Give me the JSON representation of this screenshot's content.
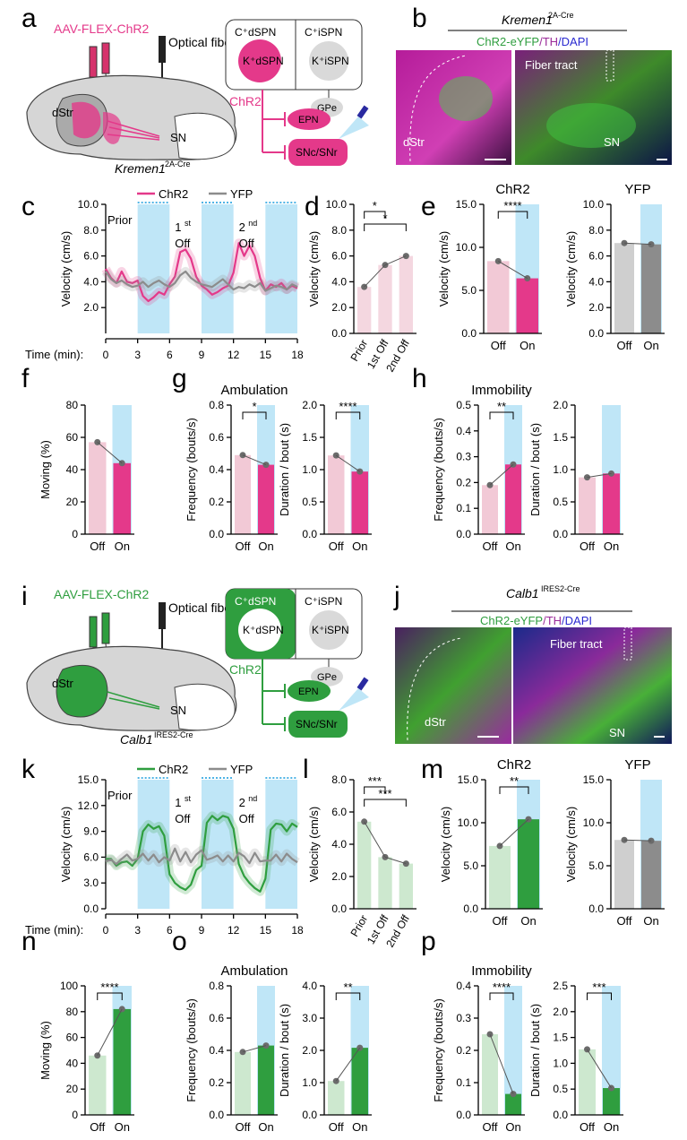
{
  "colors": {
    "chr2_magenta": "#e4398a",
    "chr2_magenta_light": "#f2c9d6",
    "chr2_green": "#2f9e3f",
    "chr2_green_light": "#cde8cf",
    "yfp_gray": "#8c8c8c",
    "yfp_gray_light": "#cfcfcf",
    "light_blue": "#bfe6f7",
    "dot": "#6b6b6b"
  },
  "top": {
    "a": {
      "letter": "a",
      "virus": "AAV-FLEX-ChR2",
      "fiber": "Optical fiber",
      "dstr": "dStr",
      "sn": "SN",
      "mouse": "Kremen1",
      "mouse_sup": "2A-Cre",
      "dspn_c": "C⁺dSPN",
      "ispn_c": "C⁺iSPN",
      "dspn_k": "K⁺dSPN",
      "ispn_k": "K⁺iSPN",
      "chr2": "ChR2",
      "gpe": "GPe",
      "epn": "EPN",
      "sncsnr": "SNc/SNr"
    },
    "b": {
      "letter": "b",
      "mouse": "Kremen1",
      "mouse_sup": "2A-Cre",
      "stain1": "ChR2-eYFP",
      "stain2": "TH",
      "stain3": "DAPI",
      "dstr": "dStr",
      "fiber_tract": "Fiber tract",
      "sn": "SN"
    }
  },
  "bottom": {
    "i": {
      "letter": "i",
      "virus": "AAV-FLEX-ChR2",
      "fiber": "Optical fiber",
      "dstr": "dStr",
      "sn": "SN",
      "mouse": "Calb1",
      "mouse_sup": "IRES2-Cre",
      "dspn_c": "C⁺dSPN",
      "ispn_c": "C⁺iSPN",
      "dspn_k": "K⁺dSPN",
      "ispn_k": "K⁺iSPN",
      "chr2": "ChR2",
      "gpe": "GPe",
      "epn": "EPN",
      "sncsnr": "SNc/SNr"
    },
    "j": {
      "letter": "j",
      "mouse": "Calb1",
      "mouse_sup": "IRES2-Cre",
      "stain1": "ChR2-eYFP",
      "stain2": "TH",
      "stain3": "DAPI",
      "dstr": "dStr",
      "fiber_tract": "Fiber tract",
      "sn": "SN"
    }
  },
  "chart_data": [
    {
      "id": "c",
      "type": "line",
      "ylabel": "Velocity (cm/s)",
      "xlabel_prefix": "Time (min):",
      "xticks": [
        0,
        3,
        6,
        9,
        12,
        15,
        18
      ],
      "yticks": [
        "2.0",
        "4.0",
        "6.0",
        "8.0",
        "10.0"
      ],
      "ylim": [
        0,
        10
      ],
      "annotations": [
        "Prior",
        "1",
        "st",
        "Off",
        "2",
        "nd",
        "Off"
      ],
      "series": [
        {
          "name": "ChR2",
          "x": [
            0,
            0.5,
            1,
            1.5,
            2,
            2.5,
            3,
            3.5,
            4,
            4.5,
            5,
            5.5,
            6,
            6.5,
            7,
            7.5,
            8,
            8.5,
            9,
            9.5,
            10,
            10.5,
            11,
            11.5,
            12,
            12.5,
            13,
            13.5,
            14,
            14.5,
            15,
            15.5,
            16,
            16.5,
            17,
            17.5,
            18
          ],
          "y": [
            5.0,
            4.3,
            3.9,
            4.8,
            4.0,
            3.9,
            4.1,
            2.9,
            2.5,
            2.8,
            3.2,
            3.0,
            3.8,
            4.4,
            6.3,
            6.5,
            5.8,
            4.4,
            3.7,
            3.4,
            3.0,
            3.2,
            3.5,
            3.7,
            4.7,
            7.0,
            6.0,
            6.8,
            6.0,
            4.3,
            3.3,
            3.8,
            3.6,
            3.9,
            3.4,
            3.7,
            3.5
          ]
        },
        {
          "name": "YFP",
          "x": [
            0,
            0.5,
            1,
            1.5,
            2,
            2.5,
            3,
            3.5,
            4,
            4.5,
            5,
            5.5,
            6,
            6.5,
            7,
            7.5,
            8,
            8.5,
            9,
            9.5,
            10,
            10.5,
            11,
            11.5,
            12,
            12.5,
            13,
            13.5,
            14,
            14.5,
            15,
            15.5,
            16,
            16.5,
            17,
            17.5,
            18
          ],
          "y": [
            4.8,
            4.2,
            3.9,
            4.1,
            3.8,
            3.6,
            3.7,
            4.0,
            3.6,
            3.9,
            4.1,
            3.8,
            3.6,
            3.9,
            4.5,
            4.8,
            4.3,
            4.0,
            3.8,
            3.7,
            3.6,
            3.9,
            4.2,
            3.8,
            3.4,
            3.6,
            3.5,
            3.8,
            3.6,
            3.9,
            3.3,
            3.5,
            3.7,
            3.6,
            3.4,
            3.8,
            3.6
          ]
        }
      ]
    },
    {
      "id": "d",
      "type": "bar",
      "ylabel": "Velocity (cm/s)",
      "categories": [
        "Prior",
        "1st Off",
        "2nd Off"
      ],
      "values": [
        3.6,
        5.3,
        6.0
      ],
      "yticks": [
        "0.0",
        "2.0",
        "4.0",
        "6.0",
        "8.0",
        "10.0"
      ],
      "ylim": [
        0,
        10
      ],
      "sig": [
        "*",
        "*"
      ]
    },
    {
      "id": "e1",
      "type": "bar",
      "title": "ChR2",
      "ylabel": "Velocity (cm/s)",
      "categories": [
        "Off",
        "On"
      ],
      "values": [
        8.4,
        6.4
      ],
      "yticks": [
        "0.0",
        "5.0",
        "10.0",
        "15.0"
      ],
      "ylim": [
        0,
        15
      ],
      "sig": [
        "****"
      ]
    },
    {
      "id": "e2",
      "type": "bar",
      "title": "YFP",
      "ylabel": "Velocity (cm/s)",
      "categories": [
        "Off",
        "On"
      ],
      "values": [
        7.0,
        6.9
      ],
      "yticks": [
        "0.0",
        "2.0",
        "4.0",
        "6.0",
        "8.0",
        "10.0"
      ],
      "ylim": [
        0,
        10
      ]
    },
    {
      "id": "f",
      "type": "bar",
      "ylabel": "Moving (%)",
      "categories": [
        "Off",
        "On"
      ],
      "values": [
        57,
        44
      ],
      "yticks": [
        "0",
        "20",
        "40",
        "60",
        "80"
      ],
      "ylim": [
        0,
        80
      ]
    },
    {
      "id": "g1",
      "type": "bar",
      "title": "Ambulation",
      "ylabel": "Frequency (bouts/s)",
      "categories": [
        "Off",
        "On"
      ],
      "values": [
        0.49,
        0.43
      ],
      "yticks": [
        "0.0",
        "0.2",
        "0.4",
        "0.6",
        "0.8"
      ],
      "ylim": [
        0,
        0.8
      ],
      "sig": [
        "*"
      ]
    },
    {
      "id": "g2",
      "type": "bar",
      "ylabel": "Duration / bout (s)",
      "categories": [
        "Off",
        "On"
      ],
      "values": [
        1.22,
        0.97
      ],
      "yticks": [
        "0.0",
        "0.5",
        "1.0",
        "1.5",
        "2.0"
      ],
      "ylim": [
        0,
        2
      ],
      "sig": [
        "****"
      ]
    },
    {
      "id": "h1",
      "type": "bar",
      "title": "Immobility",
      "ylabel": "Frequency (bouts/s)",
      "categories": [
        "Off",
        "On"
      ],
      "values": [
        0.19,
        0.27
      ],
      "yticks": [
        "0.0",
        "0.1",
        "0.2",
        "0.3",
        "0.4",
        "0.5"
      ],
      "ylim": [
        0,
        0.5
      ],
      "sig": [
        "**"
      ]
    },
    {
      "id": "h2",
      "type": "bar",
      "ylabel": "Duration / bout (s)",
      "categories": [
        "Off",
        "On"
      ],
      "values": [
        0.88,
        0.94
      ],
      "yticks": [
        "0.0",
        "0.5",
        "1.0",
        "1.5",
        "2.0"
      ],
      "ylim": [
        0,
        2
      ]
    },
    {
      "id": "k",
      "type": "line",
      "ylabel": "Velocity (cm/s)",
      "xlabel_prefix": "Time (min):",
      "xticks": [
        0,
        3,
        6,
        9,
        12,
        15,
        18
      ],
      "yticks": [
        "0.0",
        "3.0",
        "6.0",
        "9.0",
        "12.0",
        "15.0"
      ],
      "ylim": [
        0,
        15
      ],
      "annotations": [
        "Prior",
        "1",
        "st",
        "Off",
        "2",
        "nd",
        "Off"
      ],
      "series": [
        {
          "name": "ChR2",
          "x": [
            0,
            0.5,
            1,
            1.5,
            2,
            2.5,
            3,
            3.5,
            4,
            4.5,
            5,
            5.5,
            6,
            6.5,
            7,
            7.5,
            8,
            8.5,
            9,
            9.5,
            10,
            10.5,
            11,
            11.5,
            12,
            12.5,
            13,
            13.5,
            14,
            14.5,
            15,
            15.5,
            16,
            16.5,
            17,
            17.5,
            18
          ],
          "y": [
            5.8,
            5.8,
            5.0,
            5.4,
            5.5,
            5.0,
            5.8,
            9.0,
            9.8,
            9.3,
            9.6,
            8.5,
            4.0,
            3.0,
            2.5,
            2.2,
            2.8,
            4.5,
            5.0,
            10.0,
            10.8,
            10.3,
            10.8,
            10.6,
            9.3,
            5.2,
            3.8,
            3.0,
            2.4,
            2.0,
            3.5,
            9.2,
            9.9,
            9.8,
            9.0,
            9.9,
            9.5
          ]
        },
        {
          "name": "YFP",
          "x": [
            0,
            0.5,
            1,
            1.5,
            2,
            2.5,
            3,
            3.5,
            4,
            4.5,
            5,
            5.5,
            6,
            6.5,
            7,
            7.5,
            8,
            8.5,
            9,
            9.5,
            10,
            10.5,
            11,
            11.5,
            12,
            12.5,
            13,
            13.5,
            14,
            14.5,
            15,
            15.5,
            16,
            16.5,
            17,
            17.5,
            18
          ],
          "y": [
            5.5,
            5.7,
            5.2,
            5.8,
            6.3,
            5.6,
            5.8,
            6.4,
            5.6,
            6.3,
            5.4,
            6.0,
            5.6,
            7.0,
            5.5,
            6.6,
            5.4,
            6.3,
            6.8,
            5.7,
            5.9,
            6.2,
            5.5,
            6.2,
            5.5,
            6.5,
            6.1,
            5.3,
            6.5,
            5.5,
            5.6,
            5.6,
            6.3,
            5.5,
            6.4,
            5.8,
            5.4
          ]
        }
      ]
    },
    {
      "id": "l",
      "type": "bar",
      "ylabel": "Velocity (cm/s)",
      "categories": [
        "Prior",
        "1st Off",
        "2nd Off"
      ],
      "values": [
        5.4,
        3.2,
        2.8
      ],
      "yticks": [
        "0.0",
        "2.0",
        "4.0",
        "6.0",
        "8.0"
      ],
      "ylim": [
        0,
        8
      ],
      "sig": [
        "***",
        "***"
      ]
    },
    {
      "id": "m1",
      "type": "bar",
      "title": "ChR2",
      "ylabel": "Velocity (cm/s)",
      "categories": [
        "Off",
        "On"
      ],
      "values": [
        7.3,
        10.4
      ],
      "yticks": [
        "0.0",
        "5.0",
        "10.0",
        "15.0"
      ],
      "ylim": [
        0,
        15
      ],
      "sig": [
        "**"
      ]
    },
    {
      "id": "m2",
      "type": "bar",
      "title": "YFP",
      "ylabel": "Velocity (cm/s)",
      "categories": [
        "Off",
        "On"
      ],
      "values": [
        8.0,
        7.9
      ],
      "yticks": [
        "0.0",
        "5.0",
        "10.0",
        "15.0"
      ],
      "ylim": [
        0,
        15
      ]
    },
    {
      "id": "n",
      "type": "bar",
      "ylabel": "Moving (%)",
      "categories": [
        "Off",
        "On"
      ],
      "values": [
        46,
        82
      ],
      "yticks": [
        "0",
        "20",
        "40",
        "60",
        "80",
        "100"
      ],
      "ylim": [
        0,
        100
      ],
      "sig": [
        "****"
      ]
    },
    {
      "id": "o1",
      "type": "bar",
      "title": "Ambulation",
      "ylabel": "Frequency (bouts/s)",
      "categories": [
        "Off",
        "On"
      ],
      "values": [
        0.39,
        0.43
      ],
      "yticks": [
        "0.0",
        "0.2",
        "0.4",
        "0.6",
        "0.8"
      ],
      "ylim": [
        0,
        0.8
      ]
    },
    {
      "id": "o2",
      "type": "bar",
      "ylabel": "Duration / bout (s)",
      "categories": [
        "Off",
        "On"
      ],
      "values": [
        1.05,
        2.08
      ],
      "yticks": [
        "0.0",
        "1.0",
        "2.0",
        "3.0",
        "4.0"
      ],
      "ylim": [
        0,
        4
      ],
      "sig": [
        "**"
      ]
    },
    {
      "id": "p1",
      "type": "bar",
      "title": "Immobility",
      "ylabel": "Frequency (bouts/s)",
      "categories": [
        "Off",
        "On"
      ],
      "values": [
        0.25,
        0.065
      ],
      "yticks": [
        "0.0",
        "0.1",
        "0.2",
        "0.3",
        "0.4"
      ],
      "ylim": [
        0,
        0.4
      ],
      "sig": [
        "****"
      ]
    },
    {
      "id": "p2",
      "type": "bar",
      "ylabel": "Duration / bout (s)",
      "categories": [
        "Off",
        "On"
      ],
      "values": [
        1.27,
        0.52
      ],
      "yticks": [
        "0.0",
        "0.5",
        "1.0",
        "1.5",
        "2.0",
        "2.5"
      ],
      "ylim": [
        0,
        2.5
      ],
      "sig": [
        "***"
      ]
    }
  ]
}
